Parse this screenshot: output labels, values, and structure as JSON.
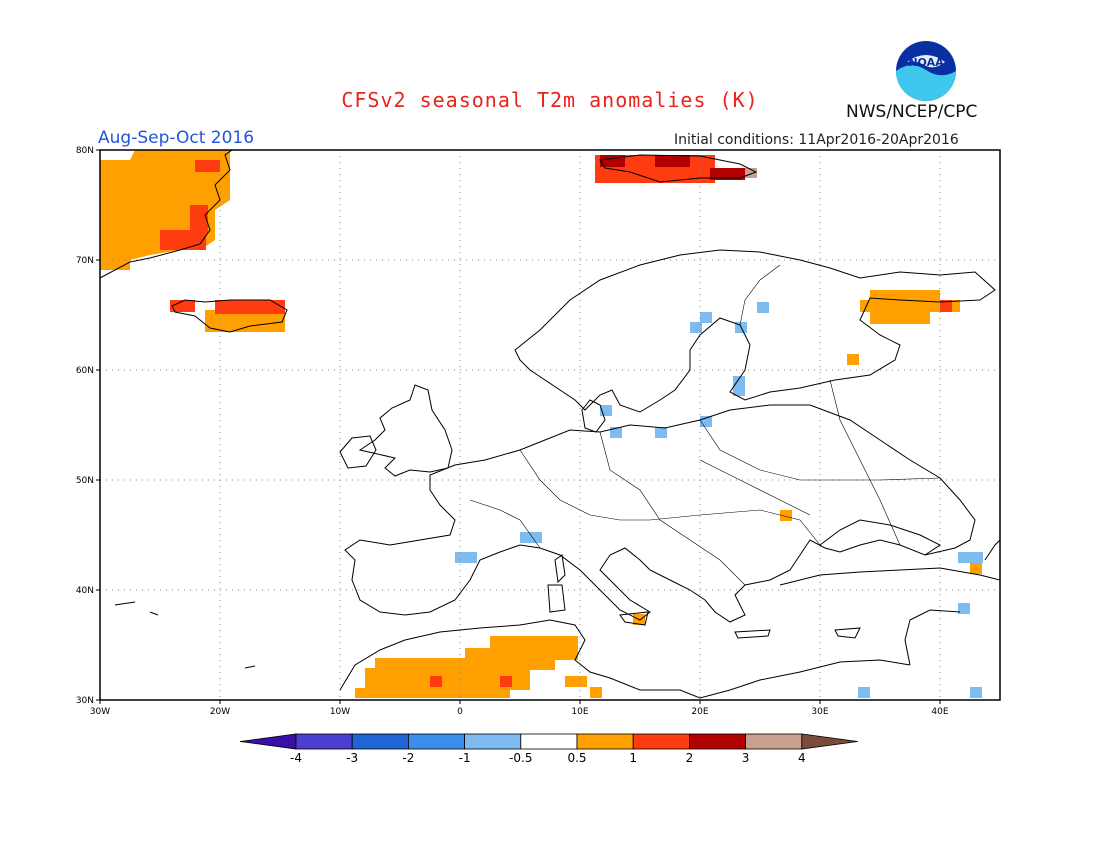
{
  "title": "CFSv2 seasonal T2m anomalies (K)",
  "agency": "NWS/NCEP/CPC",
  "logo_text": "NOAA",
  "season": "Aug-Sep-Oct 2016",
  "initial_conditions": "Initial conditions: 11Apr2016-20Apr2016",
  "map": {
    "lat_labels": [
      "80N",
      "70N",
      "60N",
      "50N",
      "40N",
      "30N"
    ],
    "lon_labels": [
      "30W",
      "20W",
      "10W",
      "0",
      "10E",
      "20E",
      "30E",
      "40E"
    ]
  },
  "colorbar": {
    "labels": [
      "-4",
      "-3",
      "-2",
      "-1",
      "-0.5",
      "0.5",
      "1",
      "2",
      "3",
      "4"
    ],
    "colors": [
      "#3a0fa8",
      "#4a3fcf",
      "#2064d6",
      "#3a8ee8",
      "#7dbbf0",
      "#ffffff",
      "#ffa000",
      "#ff3b10",
      "#b00000",
      "#c8a090",
      "#7a4a3a"
    ]
  }
}
